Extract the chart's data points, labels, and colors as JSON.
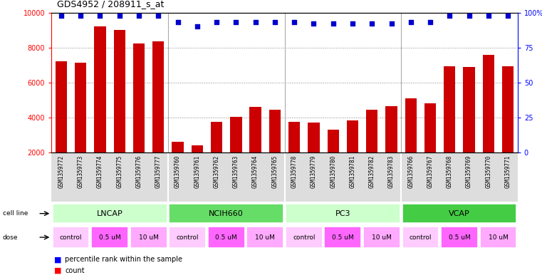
{
  "title": "GDS4952 / 208911_s_at",
  "samples": [
    "GSM1359772",
    "GSM1359773",
    "GSM1359774",
    "GSM1359775",
    "GSM1359776",
    "GSM1359777",
    "GSM1359760",
    "GSM1359761",
    "GSM1359762",
    "GSM1359763",
    "GSM1359764",
    "GSM1359765",
    "GSM1359778",
    "GSM1359779",
    "GSM1359780",
    "GSM1359781",
    "GSM1359782",
    "GSM1359783",
    "GSM1359766",
    "GSM1359767",
    "GSM1359768",
    "GSM1359769",
    "GSM1359770",
    "GSM1359771"
  ],
  "counts": [
    7200,
    7150,
    9200,
    9000,
    8250,
    8350,
    2600,
    2400,
    3750,
    4050,
    4600,
    4450,
    3750,
    3700,
    3300,
    3850,
    4450,
    4650,
    5100,
    4800,
    6950,
    6900,
    7600,
    6950
  ],
  "percentile_ranks": [
    98,
    98,
    98,
    98,
    98,
    98,
    93,
    90,
    93,
    93,
    93,
    93,
    93,
    92,
    92,
    92,
    92,
    92,
    93,
    93,
    98,
    98,
    98,
    98
  ],
  "cell_lines": [
    {
      "name": "LNCAP",
      "start": 0,
      "end": 6,
      "color": "#CCFFCC"
    },
    {
      "name": "NCIH660",
      "start": 6,
      "end": 12,
      "color": "#66DD66"
    },
    {
      "name": "PC3",
      "start": 12,
      "end": 18,
      "color": "#CCFFCC"
    },
    {
      "name": "VCAP",
      "start": 18,
      "end": 24,
      "color": "#44CC44"
    }
  ],
  "dose_groups": [
    {
      "label": "control",
      "start": 0,
      "end": 2,
      "color": "#FFCCFF"
    },
    {
      "label": "0.5 uM",
      "start": 2,
      "end": 4,
      "color": "#FF66FF"
    },
    {
      "label": "10 uM",
      "start": 4,
      "end": 6,
      "color": "#FFAAFF"
    },
    {
      "label": "control",
      "start": 6,
      "end": 8,
      "color": "#FFCCFF"
    },
    {
      "label": "0.5 uM",
      "start": 8,
      "end": 10,
      "color": "#FF66FF"
    },
    {
      "label": "10 uM",
      "start": 10,
      "end": 12,
      "color": "#FFAAFF"
    },
    {
      "label": "control",
      "start": 12,
      "end": 14,
      "color": "#FFCCFF"
    },
    {
      "label": "0.5 uM",
      "start": 14,
      "end": 16,
      "color": "#FF66FF"
    },
    {
      "label": "10 uM",
      "start": 16,
      "end": 18,
      "color": "#FFAAFF"
    },
    {
      "label": "control",
      "start": 18,
      "end": 20,
      "color": "#FFCCFF"
    },
    {
      "label": "0.5 uM",
      "start": 20,
      "end": 22,
      "color": "#FF66FF"
    },
    {
      "label": "10 uM",
      "start": 22,
      "end": 24,
      "color": "#FFAAFF"
    }
  ],
  "bar_color": "#CC0000",
  "dot_color": "#0000CC",
  "ylim_left": [
    2000,
    10000
  ],
  "ylim_right": [
    0,
    100
  ],
  "yticks_left": [
    2000,
    4000,
    6000,
    8000,
    10000
  ],
  "ytick_labels_left": [
    "2000",
    "4000",
    "6000",
    "8000",
    "10000"
  ],
  "yticks_right": [
    0,
    25,
    50,
    75,
    100
  ],
  "ytick_labels_right": [
    "0",
    "25",
    "50",
    "75",
    "100%"
  ],
  "grid_lines": [
    4000,
    6000,
    8000
  ],
  "bg_color": "#FFFFFF",
  "sample_bg_color": "#DDDDDD"
}
